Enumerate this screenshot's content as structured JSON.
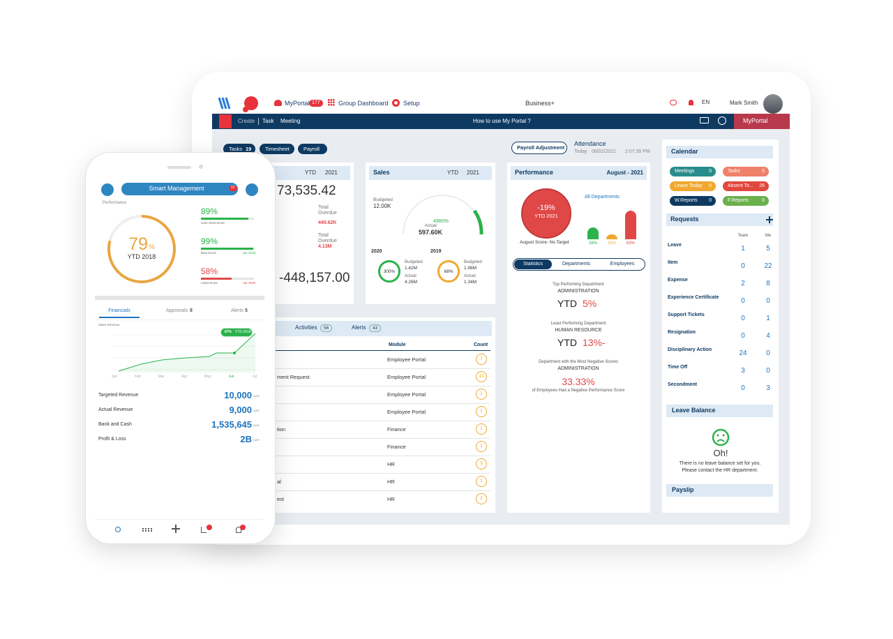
{
  "tablet": {
    "nav": {
      "myportal": "MyPortal",
      "myportal_badge": "177",
      "group_dashboard": "Group Dashboard",
      "setup": "Setup",
      "business": "Business+",
      "lang": "EN",
      "user": "Mark Smith"
    },
    "subnav": {
      "create": "Create",
      "task": "Task",
      "meeting": "Meeting",
      "help": "How to use My Portal ?",
      "portal": "MyPortal"
    },
    "pills": [
      {
        "label": "Tasks",
        "count": "19"
      },
      {
        "label": "Timesheet"
      },
      {
        "label": "Payroll"
      }
    ],
    "payroll_adjustment": "Payroll Adjustment",
    "attendance": {
      "title": "Attendance",
      "today": "Today",
      "date": "08/02/2021",
      "time": "2:07:35 PM"
    },
    "finance_card": {
      "period": "YTD",
      "year": "2021",
      "amount": "73,535.42",
      "overdue1_label": "Total Overdue",
      "overdue1": "440.62K",
      "overdue2_label": "Total Overdue",
      "overdue2": "4.13M",
      "balance": "-448,157.00"
    },
    "sales_card": {
      "title": "Sales",
      "period": "YTD",
      "year": "2021",
      "budgeted_label": "Budgeted",
      "budgeted": "12.00K",
      "gauge_pct": "4980%",
      "actual_label": "Actual",
      "actual": "597.60K",
      "years": [
        {
          "year": "2020",
          "pct": "300%",
          "budgeted_label": "Budgeted",
          "budgeted": "1.42M",
          "actual_label": "Actual",
          "actual": "4.26M",
          "color": "#2bb24c"
        },
        {
          "year": "2019",
          "pct": "68%",
          "budgeted_label": "Budgeted",
          "budgeted": "1.98M",
          "actual_label": "Actual",
          "actual": "1.34M",
          "color": "#f0a830"
        }
      ]
    },
    "performance": {
      "title": "Performance",
      "period": "August - 2021",
      "score": "-19%",
      "score_sub": "YTD 2021",
      "score_note": "August Score: No Target",
      "filter": "All Departments",
      "bars": [
        {
          "label": "26%",
          "value": 26,
          "color": "#2bb24c"
        },
        {
          "label": "11%",
          "value": 11,
          "color": "#f0a830"
        },
        {
          "label": "63%",
          "value": 63,
          "color": "#e04848"
        }
      ],
      "tabs": [
        "Statistics",
        "Departments",
        "Employees"
      ],
      "top": {
        "caption": "Top Performing Department",
        "dept": "ADMINISTRATION",
        "ytd": "YTD",
        "value": "5%"
      },
      "least": {
        "caption": "Least Performing Department",
        "dept": "HUMAN RESOURCE",
        "ytd": "YTD",
        "value": "13%-"
      },
      "negative": {
        "caption": "Department with the Most Negative Scores",
        "dept": "ADMINISTRATION",
        "value": "33.33%",
        "note": "of Employees Had a Negative Performance Score"
      }
    },
    "activities": {
      "tabs": [
        {
          "label": "Activities",
          "count": "56"
        },
        {
          "label": "Alerts",
          "count": "43"
        }
      ],
      "headers": {
        "module": "Module",
        "count": "Count"
      },
      "rows": [
        {
          "module": "Employee Portal",
          "count": "7"
        },
        {
          "name": "ment Request",
          "module": "Employee Portal",
          "count": "11"
        },
        {
          "module": "Employee Portal",
          "count": "1"
        },
        {
          "module": "Employee Portal",
          "count": "1"
        },
        {
          "name": "tion",
          "module": "Finance",
          "count": "1"
        },
        {
          "module": "Finance",
          "count": "1"
        },
        {
          "module": "HR",
          "count": "3"
        },
        {
          "name": "al",
          "module": "HR",
          "count": "1"
        },
        {
          "name": "est",
          "module": "HR",
          "count": "2"
        }
      ]
    },
    "calendar": {
      "title": "Calendar",
      "items": [
        {
          "label": "Meetings",
          "count": "0",
          "color": "#2a8c8c"
        },
        {
          "label": "Tasks",
          "count": "0",
          "color": "#f0806a"
        },
        {
          "label": "Leave Today",
          "count": "0",
          "color": "#f0a830"
        },
        {
          "label": "Absent To...",
          "count": "26",
          "color": "#e0483e"
        },
        {
          "label": "W.Reports",
          "count": "0",
          "color": "#0e3a62"
        },
        {
          "label": "F.Reports",
          "count": "0",
          "color": "#6ab04c"
        }
      ]
    },
    "requests": {
      "title": "Requests",
      "team": "Team",
      "me": "Me",
      "rows": [
        [
          "Leave",
          "1",
          "5"
        ],
        [
          "Item",
          "0",
          "22"
        ],
        [
          "Expense",
          "2",
          "8"
        ],
        [
          "Experience Certificate",
          "0",
          "0"
        ],
        [
          "Support Tickets",
          "0",
          "1"
        ],
        [
          "Resignation",
          "0",
          "4"
        ],
        [
          "Disciplinary Action",
          "24",
          "0"
        ],
        [
          "Time Off",
          "3",
          "0"
        ],
        [
          "Secondment",
          "0",
          "3"
        ]
      ]
    },
    "leave_balance": {
      "title": "Leave Balance",
      "oh": "Oh!",
      "msg1": "There is no leave balance set for you.",
      "msg2": "Please contact the HR department."
    },
    "payslip": "Payslip"
  },
  "phone": {
    "title": "Smart Management",
    "badge": "12",
    "performance_label": "Performance",
    "ring_value": "79",
    "ring_unit": "%",
    "ring_sub": "YTD 2018",
    "scores": [
      {
        "value": "89%",
        "label": "June 2018 Score",
        "color": "#2bb24c"
      },
      {
        "value": "99%",
        "label": "Best Score",
        "date": "Jan 2018",
        "color": "#2bb24c"
      },
      {
        "value": "58%",
        "label": "Least Score",
        "date": "Apr 2018",
        "color": "#e04848"
      }
    ],
    "tabs": [
      {
        "label": "Financials"
      },
      {
        "label": "Approvals",
        "count": "8"
      },
      {
        "label": "Alerts",
        "count": "5"
      }
    ],
    "chart": {
      "title": "Sales Revenue",
      "badge_pct": "87%",
      "badge_text": "YTD 2018",
      "months": [
        "Jan",
        "Feb",
        "Mar",
        "Apr",
        "May",
        "Jun",
        "Jul"
      ]
    },
    "metrics": [
      {
        "label": "Targeted Revenue",
        "value": "10,000",
        "unit": "QAR"
      },
      {
        "label": "Actual Revenue",
        "value": "9,000",
        "unit": "QAR"
      },
      {
        "label": "Bank and Cash",
        "value": "1,535,645",
        "unit": "QAR"
      },
      {
        "label": "Profit & Loss",
        "value": "2B",
        "unit": "QAR"
      }
    ]
  }
}
